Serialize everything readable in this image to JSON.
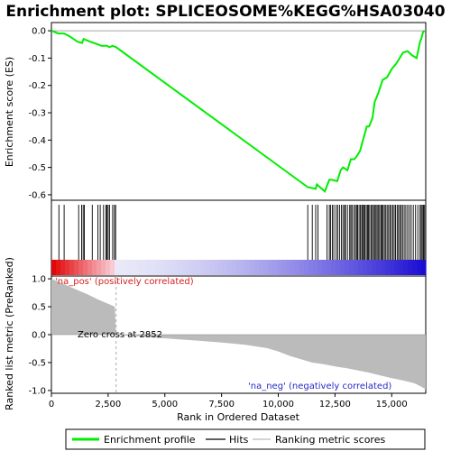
{
  "chart_data": {
    "type": "line",
    "title": "Enrichment plot: SPLICEOSOME%KEGG%HSA03040",
    "x_range": [
      0,
      16500
    ],
    "x_ticks": [
      0,
      2500,
      5000,
      7500,
      10000,
      12500,
      15000
    ],
    "x_tick_labels": [
      "0",
      "2,500",
      "5,000",
      "7,500",
      "10,000",
      "12,500",
      "15,000"
    ],
    "xlabel": "Rank in Ordered Dataset",
    "es_panel": {
      "ylabel": "Enrichment score (ES)",
      "ylim": [
        -0.62,
        0.03
      ],
      "y_ticks": [
        0.0,
        -0.1,
        -0.2,
        -0.3,
        -0.4,
        -0.5,
        -0.6
      ],
      "y_tick_labels": [
        "0.0",
        "-0.1",
        "-0.2",
        "-0.3",
        "-0.4",
        "-0.5",
        "-0.6"
      ],
      "series": [
        {
          "name": "Enrichment profile",
          "color": "#00ee00",
          "x": [
            0,
            300,
            550,
            800,
            1150,
            1350,
            1420,
            1700,
            2050,
            2200,
            2450,
            2550,
            2700,
            2850,
            11300,
            11650,
            11700,
            12050,
            12250,
            12350,
            12600,
            12750,
            12850,
            13050,
            13200,
            13350,
            13450,
            13600,
            13700,
            13800,
            13900,
            14000,
            14150,
            14250,
            14400,
            14600,
            14800,
            15000,
            15200,
            15350,
            15500,
            15700,
            15900,
            16100,
            16250,
            16300,
            16380,
            16450
          ],
          "y": [
            0.0,
            -0.01,
            -0.01,
            -0.02,
            -0.04,
            -0.045,
            -0.03,
            -0.04,
            -0.05,
            -0.055,
            -0.055,
            -0.06,
            -0.055,
            -0.06,
            -0.572,
            -0.578,
            -0.562,
            -0.588,
            -0.545,
            -0.545,
            -0.55,
            -0.51,
            -0.5,
            -0.51,
            -0.47,
            -0.47,
            -0.46,
            -0.44,
            -0.41,
            -0.38,
            -0.35,
            -0.35,
            -0.32,
            -0.26,
            -0.23,
            -0.18,
            -0.17,
            -0.14,
            -0.12,
            -0.1,
            -0.08,
            -0.075,
            -0.09,
            -0.1,
            -0.04,
            -0.03,
            -0.005,
            0.0
          ]
        }
      ]
    },
    "hits_panel": {
      "hit_positions": [
        330,
        560,
        1200,
        1330,
        1400,
        1450,
        1800,
        2050,
        2150,
        2300,
        2400,
        2450,
        2500,
        2560,
        2700,
        2780,
        2830,
        11300,
        11500,
        11650,
        11750,
        12150,
        12250,
        12300,
        12380,
        12450,
        12550,
        12620,
        12700,
        12780,
        12850,
        12920,
        12960,
        13050,
        13150,
        13200,
        13250,
        13330,
        13400,
        13450,
        13500,
        13560,
        13620,
        13680,
        13720,
        13770,
        13820,
        13880,
        13930,
        13980,
        14030,
        14100,
        14150,
        14200,
        14260,
        14310,
        14360,
        14420,
        14470,
        14530,
        14580,
        14620,
        14680,
        14740,
        14800,
        14860,
        14920,
        14980,
        15050,
        15110,
        15170,
        15240,
        15300,
        15360,
        15420,
        15480,
        15550,
        15620,
        15700,
        15780,
        15860,
        15950,
        16050,
        16150,
        16250,
        16300,
        16350,
        16400,
        16450
      ]
    },
    "rank_panel": {
      "ylabel": "Ranked list metric (PreRanked)",
      "ylim": [
        -1.05,
        1.05
      ],
      "y_ticks": [
        1.0,
        0.5,
        0.0,
        -0.5,
        -1.0
      ],
      "y_tick_labels": [
        "1.0",
        "0.5",
        "0.0",
        "-0.5",
        "-1.0"
      ],
      "metric_profile": {
        "x": [
          0,
          400,
          800,
          1200,
          1600,
          2000,
          2400,
          2800,
          2852,
          3500,
          4500,
          5500,
          6500,
          7500,
          8500,
          9500,
          10000,
          10500,
          11000,
          11500,
          12000,
          12500,
          13000,
          13500,
          14000,
          14500,
          15000,
          15500,
          16000,
          16300,
          16500
        ],
        "y": [
          1.0,
          0.93,
          0.86,
          0.79,
          0.72,
          0.64,
          0.57,
          0.5,
          0.0,
          -0.02,
          -0.05,
          -0.08,
          -0.11,
          -0.14,
          -0.18,
          -0.24,
          -0.3,
          -0.38,
          -0.44,
          -0.5,
          -0.53,
          -0.57,
          -0.6,
          -0.64,
          -0.68,
          -0.73,
          -0.78,
          -0.82,
          -0.87,
          -0.93,
          -0.98
        ]
      },
      "zero_cross_label": "Zero cross at 2852",
      "zero_cross_at": 2852,
      "pos_label": "'na_pos' (positively correlated)",
      "neg_label": "'na_neg' (negatively correlated)",
      "pos_color": "#e02020",
      "neg_color": "#2828c8"
    },
    "legend": {
      "placement": "bottom",
      "items": [
        {
          "label": "Enrichment profile",
          "color": "#00ee00"
        },
        {
          "label": "Hits",
          "color": "#000000"
        },
        {
          "label": "Ranking metric scores",
          "color": "#bbbbbb"
        }
      ]
    }
  }
}
